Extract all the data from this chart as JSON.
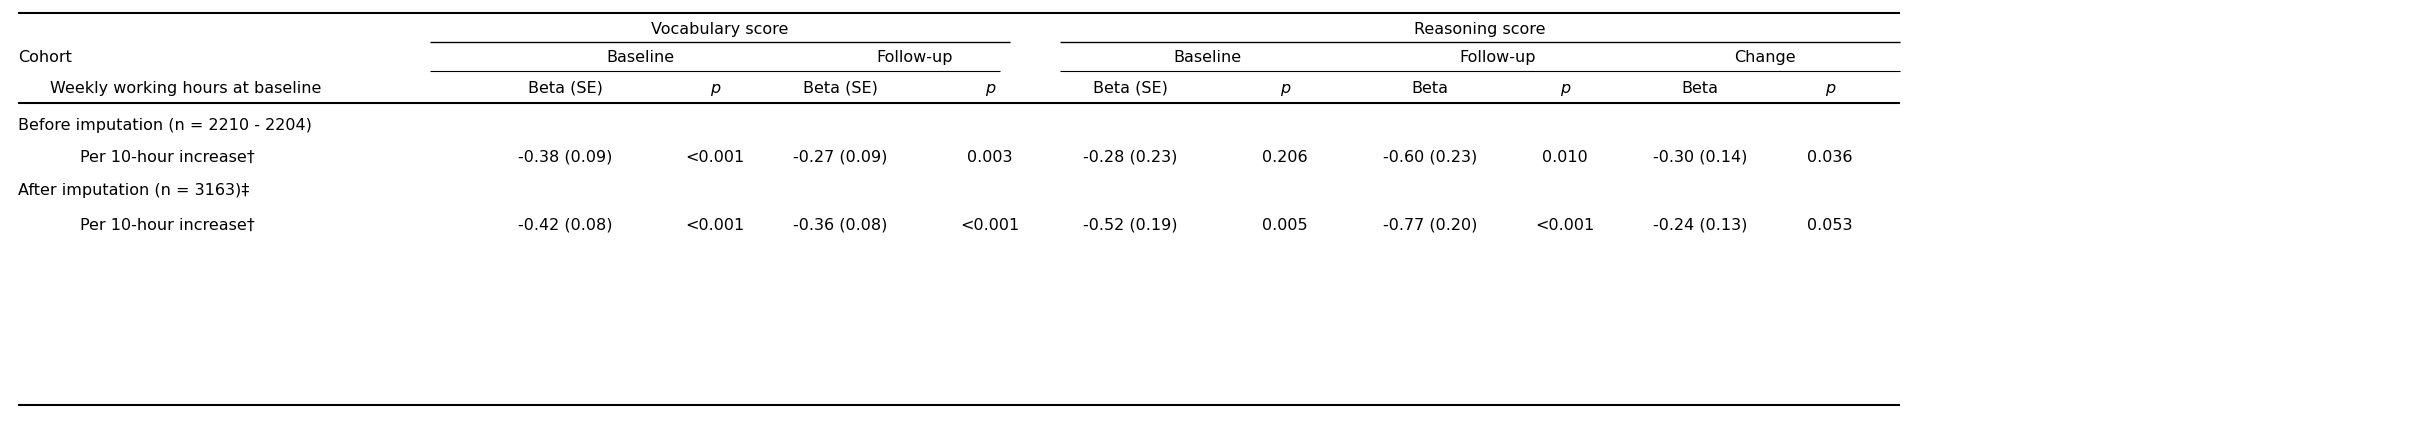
{
  "bg_color": "#ffffff",
  "vocab_header": "Vocabulary score",
  "reasoning_header": "Reasoning score",
  "col2_header": "Baseline",
  "col3_header": "Follow-up",
  "col4_header": "Baseline",
  "col5_header": "Follow-up",
  "col6_header": "Change",
  "row_cohort": "Cohort",
  "row_weekly": "Weekly working hours at baseline",
  "col_beta_se_1": "Beta (SE)",
  "col_p_1": "p",
  "col_beta_se_2": "Beta (SE)",
  "col_p_2": "p",
  "col_beta_se_3": "Beta (SE)",
  "col_p_3": "p",
  "col_beta_4": "Beta",
  "col_p_4": "p",
  "col_beta_5": "Beta",
  "col_p_5": "p",
  "row1_label": "Before imputation (n = 2210 - 2204)",
  "row2_label": "Per 10-hour increase†",
  "row3_label": "After imputation (n = 3163)‡",
  "row4_label": "Per 10-hour increase†",
  "row2_voc_base_beta": "-0.38 (0.09)",
  "row2_voc_base_p": "<0.001",
  "row2_voc_fup_beta": "-0.27 (0.09)",
  "row2_voc_fup_p": "0.003",
  "row2_reas_base_beta": "-0.28 (0.23)",
  "row2_reas_base_p": "0.206",
  "row2_reas_fup_beta": "-0.60 (0.23)",
  "row2_reas_fup_p": "0.010",
  "row2_reas_chg_beta": "-0.30 (0.14)",
  "row2_reas_chg_p": "0.036",
  "row4_voc_base_beta": "-0.42 (0.08)",
  "row4_voc_base_p": "<0.001",
  "row4_voc_fup_beta": "-0.36 (0.08)",
  "row4_voc_fup_p": "<0.001",
  "row4_reas_base_beta": "-0.52 (0.19)",
  "row4_reas_base_p": "0.005",
  "row4_reas_fup_beta": "-0.77 (0.20)",
  "row4_reas_fup_p": "<0.001",
  "row4_reas_chg_beta": "-0.24 (0.13)",
  "row4_reas_chg_p": "0.053",
  "font_size": 11.5
}
